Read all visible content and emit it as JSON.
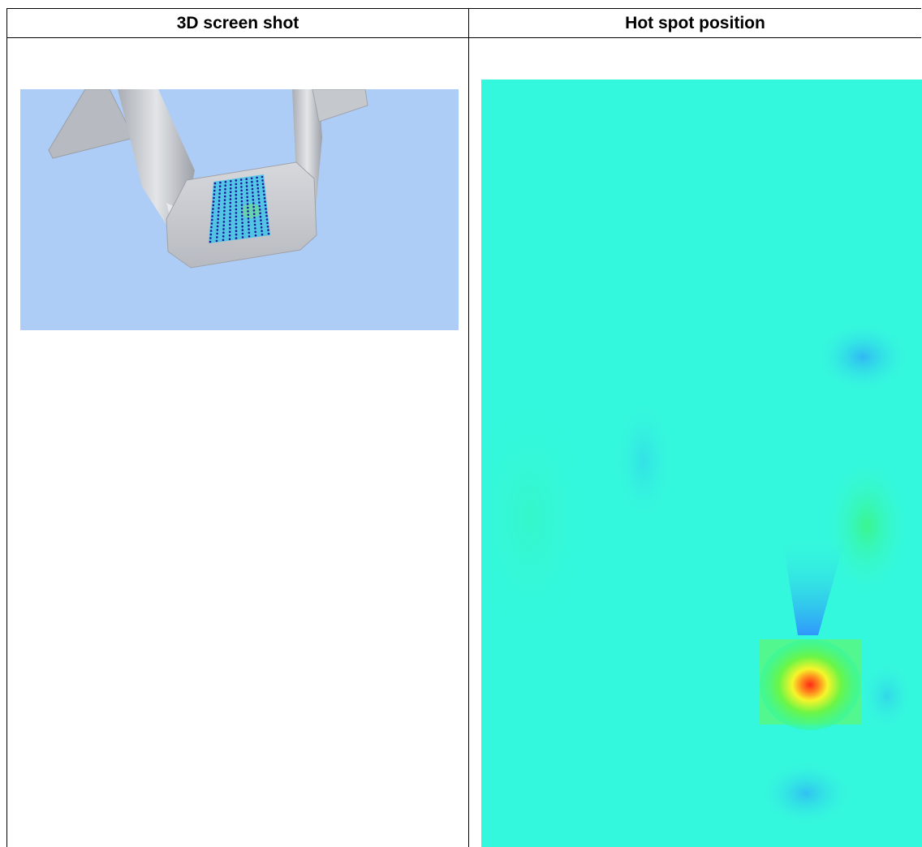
{
  "table": {
    "columns": [
      {
        "header": "3D screen shot"
      },
      {
        "header": "Hot spot position"
      }
    ]
  },
  "figures": {
    "screenshot": {
      "background_color": "#aecdf6",
      "model_color": "#c9ccd1",
      "sensor_grid": {
        "rows": 17,
        "cols": 10,
        "dot_color": "#1a1a9c"
      }
    },
    "hotspot_map": {
      "base_color": "#34f8dd",
      "colormap": [
        "#2f9bff",
        "#34f8dd",
        "#3cf57a",
        "#f6f52a",
        "#ff3a1a"
      ],
      "peak_color": "#ff3a1a"
    }
  }
}
